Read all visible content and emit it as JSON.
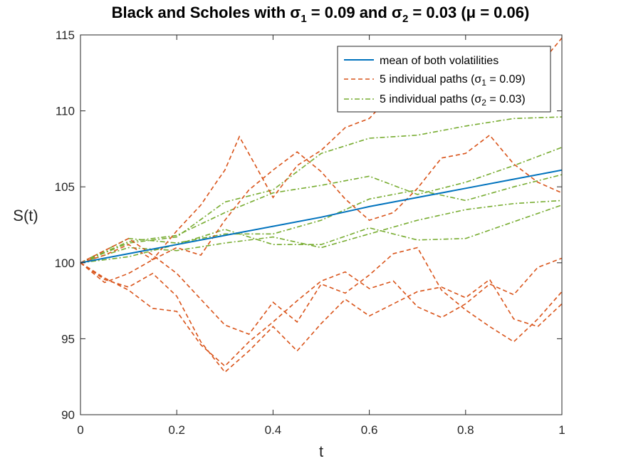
{
  "chart_data": {
    "type": "line",
    "title": {
      "prefix": "Black and Scholes with σ",
      "sub1": "1",
      "mid1": " = 0.09 and σ",
      "sub2": "2",
      "suffix": " = 0.03 (μ = 0.06)"
    },
    "xlabel": "t",
    "ylabel": "S(t)",
    "xlim": [
      0,
      1
    ],
    "ylim": [
      90,
      115
    ],
    "xticks": [
      0,
      0.2,
      0.4,
      0.6,
      0.8,
      1
    ],
    "xtick_labels": [
      "0",
      "0.2",
      "0.4",
      "0.6",
      "0.8",
      "1"
    ],
    "yticks": [
      90,
      95,
      100,
      105,
      110,
      115
    ],
    "ytick_labels": [
      "90",
      "95",
      "100",
      "105",
      "110",
      "115"
    ],
    "grid": false,
    "legend_position": "top-right",
    "legend": [
      {
        "label": "mean of both volatilities",
        "color": "#0072BD",
        "dash": "solid"
      },
      {
        "label_prefix": "5 individual paths (σ",
        "label_sub": "1",
        "label_suffix": " = 0.09)",
        "color": "#D95319",
        "dash": "dashed"
      },
      {
        "label_prefix": "5 individual paths (σ",
        "label_sub": "2",
        "label_suffix": " = 0.03)",
        "color": "#77AC30",
        "dash": "dashdot"
      }
    ],
    "mean": {
      "name": "mean of both volatilities",
      "color": "#0072BD",
      "x": [
        0,
        0.1,
        0.2,
        0.3,
        0.4,
        0.5,
        0.6,
        0.7,
        0.8,
        0.9,
        1.0
      ],
      "y": [
        100,
        100.6,
        101.2,
        101.8,
        102.4,
        103.0,
        103.7,
        104.3,
        104.9,
        105.5,
        106.1
      ]
    },
    "series_high_vol": [
      {
        "x": [
          0,
          0.05,
          0.1,
          0.15,
          0.2,
          0.25,
          0.28,
          0.3,
          0.33,
          0.36,
          0.4,
          0.45,
          0.5,
          0.55,
          0.6,
          0.65,
          0.7,
          0.75,
          0.8,
          0.85,
          0.9,
          0.95,
          1.0
        ],
        "y": [
          100,
          100.5,
          101.2,
          100.2,
          102.1,
          103.8,
          105.2,
          106.1,
          108.3,
          106.6,
          104.3,
          106.4,
          107.4,
          108.9,
          109.5,
          111.2,
          111.8,
          110.6,
          112.3,
          111.0,
          111.6,
          112.9,
          114.8
        ]
      },
      {
        "x": [
          0,
          0.05,
          0.1,
          0.15,
          0.2,
          0.25,
          0.3,
          0.35,
          0.4,
          0.45,
          0.5,
          0.55,
          0.6,
          0.65,
          0.7,
          0.75,
          0.8,
          0.85,
          0.9,
          0.95,
          1.0
        ],
        "y": [
          100,
          98.7,
          99.3,
          100.2,
          101.0,
          100.5,
          102.8,
          104.8,
          106.1,
          107.3,
          106.0,
          104.2,
          102.8,
          103.3,
          104.9,
          106.9,
          107.2,
          108.4,
          106.5,
          105.3,
          104.6
        ]
      },
      {
        "x": [
          0,
          0.05,
          0.1,
          0.15,
          0.2,
          0.25,
          0.3,
          0.35,
          0.4,
          0.45,
          0.5,
          0.55,
          0.6,
          0.65,
          0.7,
          0.75,
          0.8,
          0.85,
          0.9,
          0.95,
          1.0
        ],
        "y": [
          100,
          99.0,
          98.2,
          97.0,
          96.8,
          94.6,
          93.2,
          94.8,
          96.1,
          97.5,
          98.8,
          99.4,
          98.3,
          98.8,
          97.1,
          96.4,
          97.3,
          98.6,
          97.9,
          99.7,
          100.3
        ]
      },
      {
        "x": [
          0,
          0.05,
          0.1,
          0.15,
          0.2,
          0.25,
          0.3,
          0.35,
          0.4,
          0.45,
          0.5,
          0.55,
          0.6,
          0.65,
          0.7,
          0.75,
          0.8,
          0.85,
          0.9,
          0.95,
          1.0
        ],
        "y": [
          100,
          100.8,
          101.6,
          100.5,
          99.3,
          97.6,
          95.9,
          95.3,
          97.4,
          96.1,
          98.6,
          98.0,
          99.2,
          100.6,
          101.0,
          98.2,
          96.9,
          95.8,
          94.8,
          96.3,
          98.1
        ]
      },
      {
        "x": [
          0,
          0.05,
          0.1,
          0.15,
          0.2,
          0.25,
          0.3,
          0.35,
          0.4,
          0.45,
          0.5,
          0.55,
          0.6,
          0.65,
          0.7,
          0.75,
          0.8,
          0.85,
          0.9,
          0.95,
          1.0
        ],
        "y": [
          100,
          98.9,
          98.4,
          99.3,
          97.8,
          94.8,
          92.8,
          94.2,
          95.8,
          94.2,
          96.0,
          97.6,
          96.5,
          97.3,
          98.1,
          98.4,
          97.7,
          98.9,
          96.3,
          95.8,
          97.3
        ]
      }
    ],
    "series_low_vol": [
      {
        "x": [
          0,
          0.1,
          0.2,
          0.3,
          0.4,
          0.5,
          0.6,
          0.7,
          0.8,
          0.9,
          1.0
        ],
        "y": [
          100,
          101.3,
          101.7,
          104.0,
          104.8,
          107.2,
          108.2,
          108.4,
          109.0,
          109.5,
          109.6
        ]
      },
      {
        "x": [
          0,
          0.1,
          0.2,
          0.3,
          0.4,
          0.5,
          0.6,
          0.7,
          0.8,
          0.9,
          1.0
        ],
        "y": [
          100,
          101.4,
          101.8,
          103.3,
          104.6,
          105.1,
          105.7,
          104.5,
          105.3,
          106.4,
          107.6
        ]
      },
      {
        "x": [
          0,
          0.1,
          0.2,
          0.3,
          0.4,
          0.5,
          0.6,
          0.7,
          0.8,
          0.9,
          1.0
        ],
        "y": [
          100,
          101.6,
          101.3,
          101.9,
          101.9,
          102.8,
          104.2,
          104.8,
          104.1,
          105.0,
          105.8
        ]
      },
      {
        "x": [
          0,
          0.1,
          0.2,
          0.3,
          0.4,
          0.5,
          0.6,
          0.7,
          0.8,
          0.9,
          1.0
        ],
        "y": [
          100,
          101.0,
          100.8,
          101.3,
          101.7,
          101.0,
          101.9,
          102.8,
          103.5,
          103.9,
          104.1
        ]
      },
      {
        "x": [
          0,
          0.1,
          0.2,
          0.3,
          0.4,
          0.5,
          0.6,
          0.7,
          0.8,
          0.9,
          1.0
        ],
        "y": [
          100,
          100.4,
          101.2,
          102.2,
          101.2,
          101.2,
          102.3,
          101.5,
          101.6,
          102.7,
          103.8
        ]
      }
    ]
  }
}
